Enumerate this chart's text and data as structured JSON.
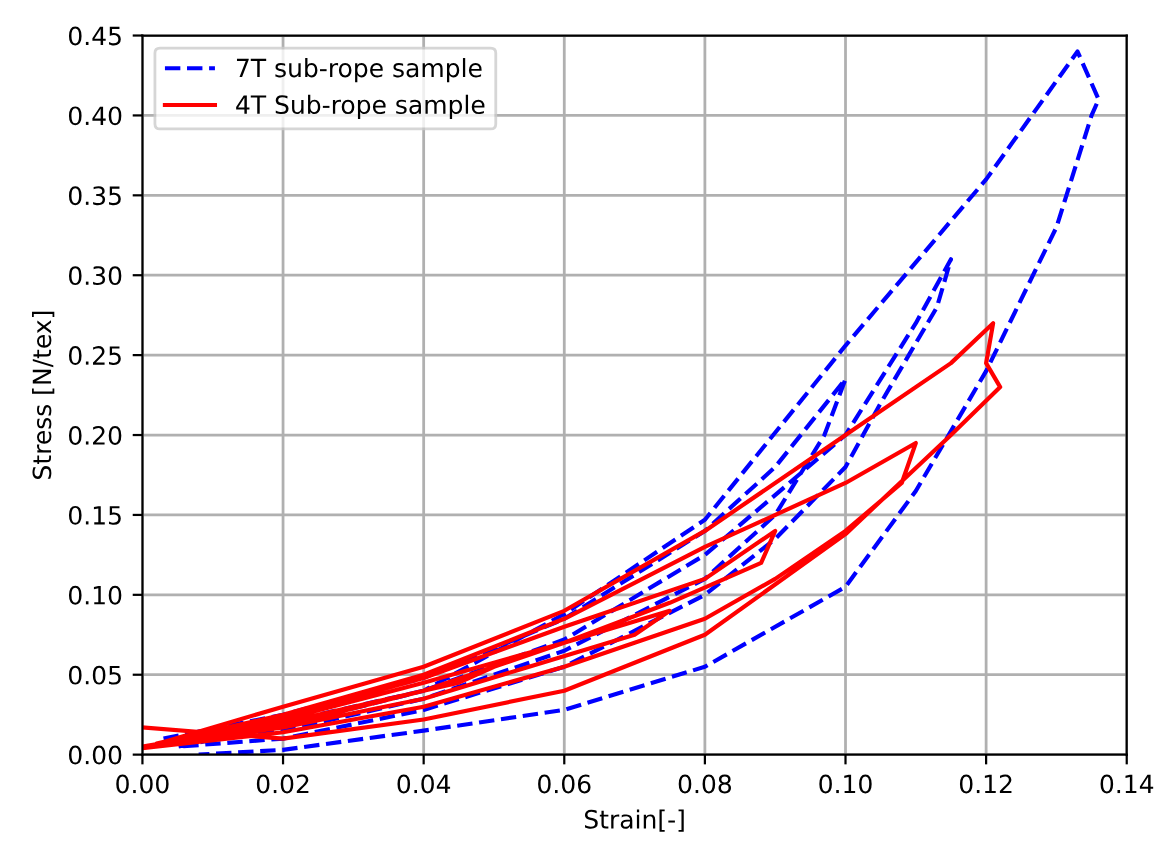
{
  "chart_data": {
    "type": "line",
    "xlabel": "Strain[-]",
    "ylabel": "Stress [N/tex]",
    "xlim": [
      0,
      0.14
    ],
    "ylim": [
      0,
      0.45
    ],
    "xticks": [
      {
        "value": 0,
        "label": "0.00"
      },
      {
        "value": 0.02,
        "label": "0.02"
      },
      {
        "value": 0.04,
        "label": "0.04"
      },
      {
        "value": 0.06,
        "label": "0.06"
      },
      {
        "value": 0.08,
        "label": "0.08"
      },
      {
        "value": 0.1,
        "label": "0.10"
      },
      {
        "value": 0.12,
        "label": "0.12"
      },
      {
        "value": 0.14,
        "label": "0.14"
      }
    ],
    "yticks": [
      {
        "value": 0,
        "label": "0.00"
      },
      {
        "value": 0.05,
        "label": "0.05"
      },
      {
        "value": 0.1,
        "label": "0.10"
      },
      {
        "value": 0.15,
        "label": "0.15"
      },
      {
        "value": 0.2,
        "label": "0.20"
      },
      {
        "value": 0.25,
        "label": "0.25"
      },
      {
        "value": 0.3,
        "label": "0.30"
      },
      {
        "value": 0.35,
        "label": "0.35"
      },
      {
        "value": 0.4,
        "label": "0.40"
      },
      {
        "value": 0.45,
        "label": "0.45"
      }
    ],
    "grid": true,
    "legend": "top left",
    "series": [
      {
        "name": "7T sub-rope sample",
        "color": "#0000ff",
        "line_style": "dashed",
        "x": [
          0.003,
          0.02,
          0.04,
          0.06,
          0.08,
          0.09,
          0.1,
          0.097,
          0.09,
          0.08,
          0.06,
          0.04,
          0.02,
          0.005,
          0.02,
          0.04,
          0.06,
          0.08,
          0.1,
          0.11,
          0.115,
          0.113,
          0.105,
          0.1,
          0.09,
          0.08,
          0.06,
          0.04,
          0.02,
          0.005,
          0.02,
          0.04,
          0.06,
          0.08,
          0.1,
          0.12,
          0.133,
          0.136,
          0.135,
          0.13,
          0.12,
          0.11,
          0.1,
          0.08,
          0.06,
          0.04,
          0.02,
          0.008
        ],
        "values": [
          0.01,
          0.025,
          0.048,
          0.085,
          0.14,
          0.18,
          0.235,
          0.2,
          0.15,
          0.11,
          0.065,
          0.035,
          0.015,
          0.008,
          0.02,
          0.04,
          0.072,
          0.125,
          0.2,
          0.27,
          0.31,
          0.28,
          0.22,
          0.18,
          0.135,
          0.1,
          0.055,
          0.028,
          0.01,
          0.005,
          0.018,
          0.04,
          0.088,
          0.147,
          0.256,
          0.36,
          0.44,
          0.41,
          0.4,
          0.33,
          0.24,
          0.165,
          0.105,
          0.055,
          0.028,
          0.015,
          0.003,
          0.0
        ]
      },
      {
        "name": "4T Sub-rope sample",
        "color": "#ff0000",
        "line_style": "solid",
        "x": [
          0.0,
          0.02,
          0.04,
          0.05,
          0.045,
          0.03,
          0.015,
          0.002,
          0.02,
          0.04,
          0.06,
          0.075,
          0.07,
          0.055,
          0.04,
          0.02,
          0.002,
          0.02,
          0.04,
          0.06,
          0.08,
          0.09,
          0.088,
          0.075,
          0.06,
          0.04,
          0.02,
          0.002,
          0.02,
          0.04,
          0.06,
          0.08,
          0.1,
          0.11,
          0.108,
          0.1,
          0.09,
          0.08,
          0.06,
          0.04,
          0.02,
          0.0,
          0.02,
          0.04,
          0.06,
          0.08,
          0.1,
          0.115,
          0.121,
          0.12,
          0.122,
          0.115,
          0.1,
          0.08,
          0.06,
          0.04,
          0.02,
          0.0
        ],
        "values": [
          0.005,
          0.02,
          0.04,
          0.055,
          0.045,
          0.03,
          0.015,
          0.006,
          0.022,
          0.045,
          0.07,
          0.09,
          0.075,
          0.055,
          0.035,
          0.017,
          0.006,
          0.024,
          0.048,
          0.08,
          0.11,
          0.14,
          0.12,
          0.095,
          0.07,
          0.04,
          0.018,
          0.007,
          0.025,
          0.05,
          0.085,
          0.13,
          0.17,
          0.195,
          0.17,
          0.14,
          0.11,
          0.085,
          0.055,
          0.03,
          0.014,
          0.004,
          0.03,
          0.055,
          0.09,
          0.14,
          0.2,
          0.245,
          0.27,
          0.245,
          0.23,
          0.2,
          0.138,
          0.075,
          0.04,
          0.022,
          0.01,
          0.017
        ]
      }
    ]
  }
}
